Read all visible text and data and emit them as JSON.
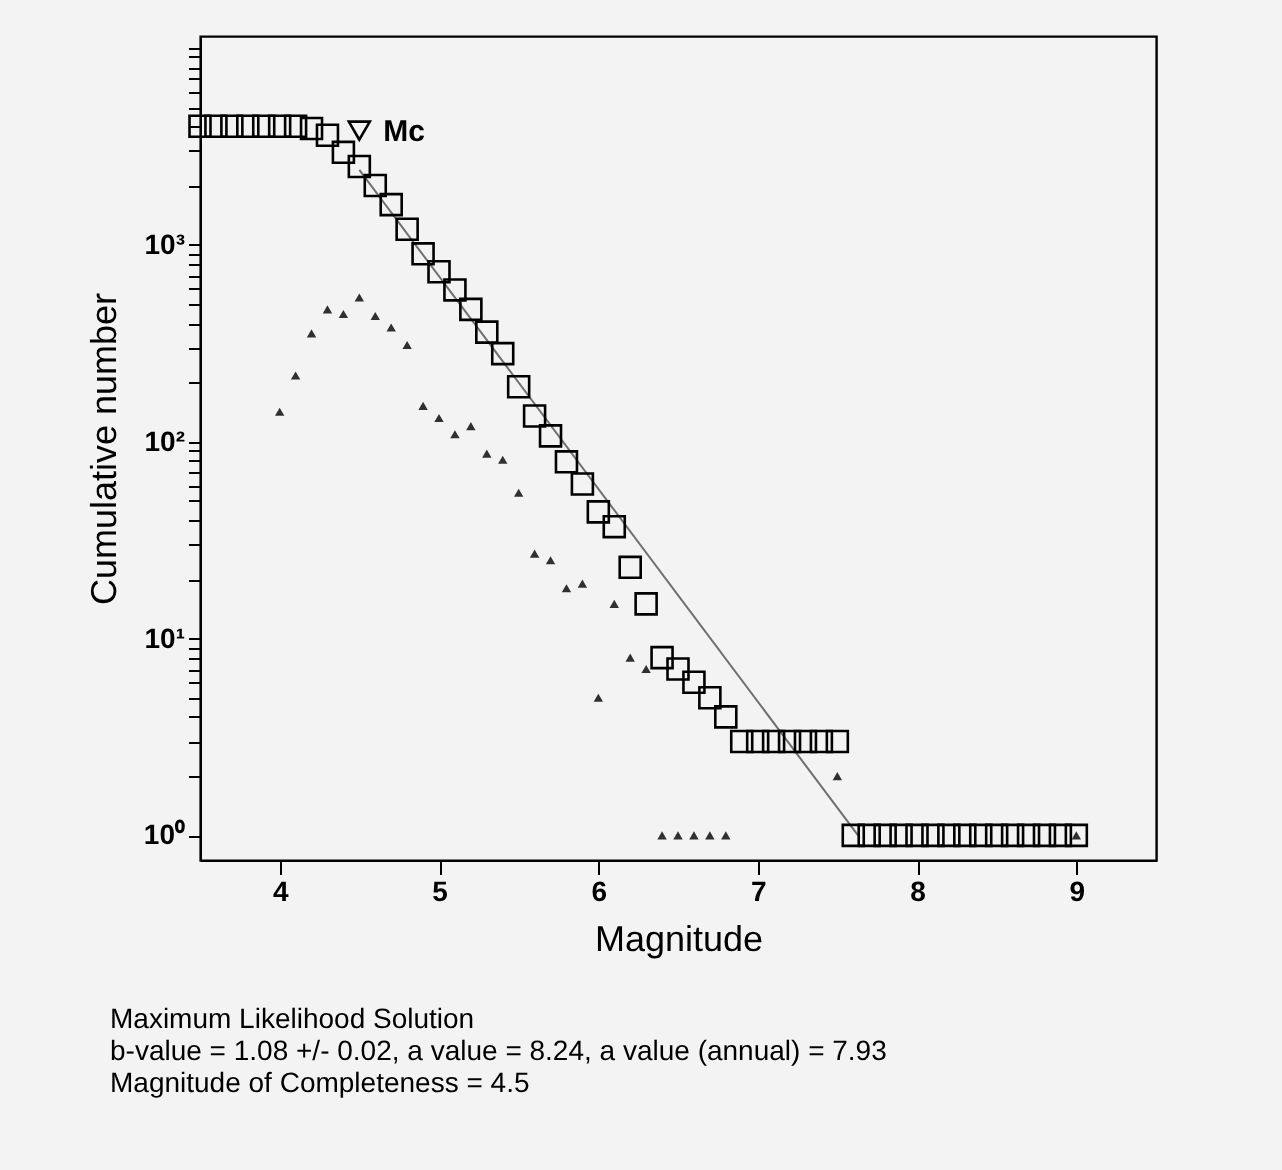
{
  "chart_data": {
    "type": "scatter",
    "xlabel": "Magnitude",
    "ylabel": "Cumulative number",
    "xlim": [
      3.5,
      9.5
    ],
    "ylim": [
      0.75,
      11500
    ],
    "log": "y",
    "grid": false,
    "xticks": [
      4,
      5,
      6,
      7,
      8,
      9
    ],
    "yticks": [
      {
        "value": 1,
        "label": "10⁰"
      },
      {
        "value": 2,
        "label": null
      },
      {
        "value": 3,
        "label": null
      },
      {
        "value": 4,
        "label": null
      },
      {
        "value": 5,
        "label": null
      },
      {
        "value": 6,
        "label": null
      },
      {
        "value": 7,
        "label": null
      },
      {
        "value": 8,
        "label": null
      },
      {
        "value": 9,
        "label": null
      },
      {
        "value": 10,
        "label": "10¹"
      },
      {
        "value": 20,
        "label": null
      },
      {
        "value": 30,
        "label": null
      },
      {
        "value": 40,
        "label": null
      },
      {
        "value": 50,
        "label": null
      },
      {
        "value": 60,
        "label": null
      },
      {
        "value": 70,
        "label": null
      },
      {
        "value": 80,
        "label": null
      },
      {
        "value": 90,
        "label": null
      },
      {
        "value": 100,
        "label": "10²"
      },
      {
        "value": 200,
        "label": null
      },
      {
        "value": 300,
        "label": null
      },
      {
        "value": 400,
        "label": null
      },
      {
        "value": 500,
        "label": null
      },
      {
        "value": 600,
        "label": null
      },
      {
        "value": 700,
        "label": null
      },
      {
        "value": 800,
        "label": null
      },
      {
        "value": 900,
        "label": null
      },
      {
        "value": 1000,
        "label": "10³"
      },
      {
        "value": 2000,
        "label": null
      },
      {
        "value": 3000,
        "label": null
      },
      {
        "value": 4000,
        "label": null
      },
      {
        "value": 5000,
        "label": null
      },
      {
        "value": 6000,
        "label": null
      },
      {
        "value": 7000,
        "label": null
      },
      {
        "value": 8000,
        "label": null
      },
      {
        "value": 9000,
        "label": null
      },
      {
        "value": 10000,
        "label": null
      }
    ],
    "series": [
      {
        "type": "line",
        "color": "#707070",
        "line_style": "solid",
        "x": [
          4.5,
          7.63
        ],
        "values": [
          2400,
          1
        ]
      },
      {
        "color": "#000000",
        "marker": "square",
        "x": [
          3.5,
          3.6,
          3.7,
          3.8,
          3.9,
          4.0,
          4.1,
          4.2,
          4.3,
          4.4,
          4.5,
          4.6,
          4.7,
          4.8,
          4.9,
          5.0,
          5.1,
          5.2,
          5.3,
          5.4,
          5.5,
          5.6,
          5.7,
          5.8,
          5.9,
          6.0,
          6.1,
          6.2,
          6.3,
          6.4,
          6.5,
          6.6,
          6.7,
          6.8,
          6.9,
          7.0,
          7.1,
          7.2,
          7.3,
          7.4,
          7.5,
          7.6,
          7.7,
          7.8,
          7.9,
          8.0,
          8.1,
          8.2,
          8.3,
          8.4,
          8.5,
          8.6,
          8.7,
          8.8,
          8.9,
          9.0
        ],
        "values": [
          4000,
          4000,
          4000,
          4000,
          4000,
          4000,
          4000,
          3900,
          3600,
          2950,
          2500,
          2000,
          1600,
          1200,
          900,
          730,
          590,
          470,
          360,
          280,
          190,
          135,
          107,
          79,
          61,
          44,
          37,
          23,
          15,
          8,
          7,
          6,
          5,
          4,
          3,
          3,
          3,
          3,
          3,
          3,
          3,
          1,
          1,
          1,
          1,
          1,
          1,
          1,
          1,
          1,
          1,
          1,
          1,
          1,
          1,
          1
        ]
      },
      {
        "color": "#303030",
        "marker": "triangle",
        "x": [
          4.0,
          4.1,
          4.2,
          4.3,
          4.4,
          4.5,
          4.6,
          4.7,
          4.8,
          4.9,
          5.0,
          5.1,
          5.2,
          5.3,
          5.4,
          5.5,
          5.6,
          5.7,
          5.8,
          5.9,
          6.0,
          6.1,
          6.2,
          6.3,
          6.4,
          6.5,
          6.6,
          6.7,
          6.8,
          7.5,
          9.0
        ],
        "values": [
          142,
          217,
          355,
          470,
          445,
          540,
          435,
          380,
          310,
          152,
          132,
          109,
          120,
          87,
          81,
          55,
          27,
          25,
          18,
          19,
          5,
          15,
          8,
          7,
          1,
          1,
          1,
          1,
          1,
          2,
          1
        ]
      },
      {
        "name": "Mc",
        "color": "#000000",
        "marker": "triangle-down",
        "x": [
          4.5
        ],
        "values": [
          3800
        ]
      }
    ],
    "annotations": [
      "Maximum Likelihood Solution",
      "b-value = 1.08 +/- 0.02,  a value = 8.24,  a value (annual) = 7.93",
      "Magnitude of Completeness = 4.5"
    ]
  }
}
